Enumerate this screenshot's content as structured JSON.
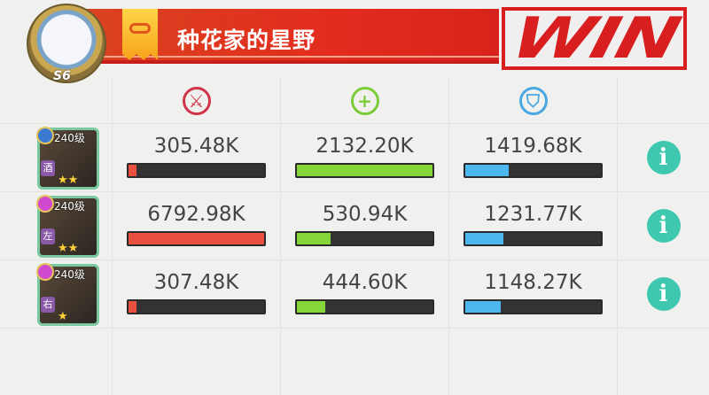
{
  "player": {
    "name": "种花家的星野",
    "level": "S6"
  },
  "result": "WIN",
  "columns": [
    {
      "icon": "sword-icon",
      "glyph": "⚔",
      "color": "#d0344a"
    },
    {
      "icon": "heal-plus-icon",
      "glyph": "+",
      "color": "#7ccc3a"
    },
    {
      "icon": "shield-icon",
      "glyph": "⛉",
      "color": "#4aa8e0"
    }
  ],
  "colors": {
    "damage": "#ea5040",
    "heal": "#86d63a",
    "shield": "#4db8f0",
    "info": "#3fc8b0",
    "banner": "#e32c1e"
  },
  "heroes": [
    {
      "level": "240级",
      "tag": "酒",
      "gem": "#3a7ad0",
      "damage": "305.48K",
      "heal": "2132.20K",
      "shield": "1419.68K",
      "fills": {
        "damage": 0.06,
        "heal": 1.0,
        "shield": 0.32
      },
      "stars": "★★"
    },
    {
      "level": "240级",
      "tag": "左",
      "gem": "#d04ad0",
      "damage": "6792.98K",
      "heal": "530.94K",
      "shield": "1231.77K",
      "fills": {
        "damage": 1.0,
        "heal": 0.25,
        "shield": 0.28
      },
      "stars": "★★"
    },
    {
      "level": "240级",
      "tag": "右",
      "gem": "#d04ad0",
      "damage": "307.48K",
      "heal": "444.60K",
      "shield": "1148.27K",
      "fills": {
        "damage": 0.06,
        "heal": 0.21,
        "shield": 0.26
      },
      "stars": "★"
    }
  ],
  "info_glyph": "i"
}
